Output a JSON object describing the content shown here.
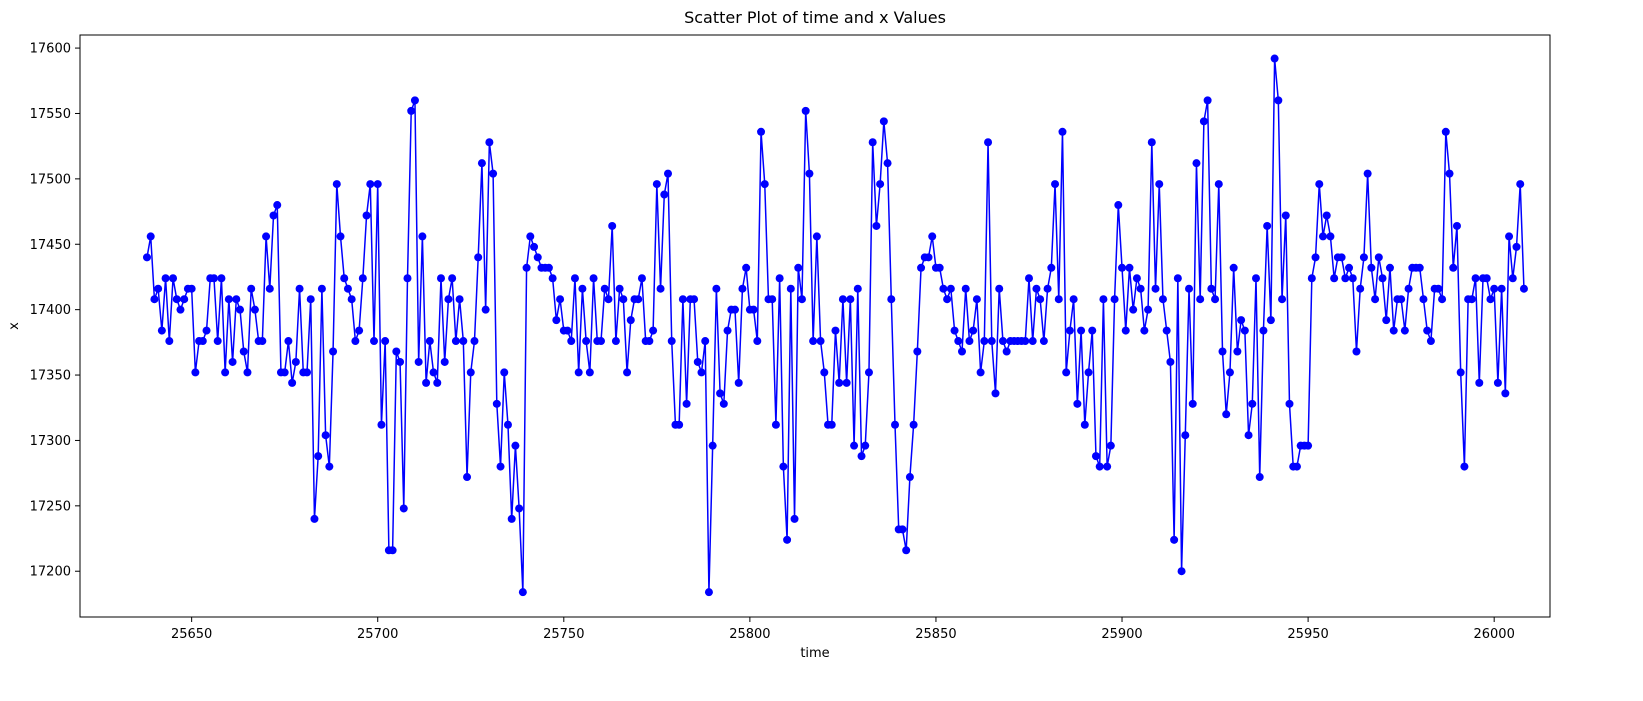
{
  "chart_data": {
    "type": "scatter",
    "title": "Scatter Plot of time and x Values",
    "xlabel": "time",
    "ylabel": "x",
    "xlim": [
      25620,
      26015
    ],
    "ylim": [
      17165,
      17610
    ],
    "xticks": [
      25650,
      25700,
      25750,
      25800,
      25850,
      25900,
      25950,
      26000
    ],
    "yticks": [
      17200,
      17250,
      17300,
      17350,
      17400,
      17450,
      17500,
      17550,
      17600
    ],
    "grid": false,
    "legend": "none",
    "color": "#0000ff",
    "marker": "circle",
    "connected": true,
    "x_start": 25638,
    "x_step": 1,
    "y": [
      17440,
      17456,
      17408,
      17416,
      17384,
      17424,
      17376,
      17424,
      17408,
      17400,
      17408,
      17416,
      17416,
      17352,
      17376,
      17376,
      17384,
      17424,
      17424,
      17376,
      17424,
      17352,
      17408,
      17360,
      17408,
      17400,
      17368,
      17352,
      17416,
      17400,
      17376,
      17376,
      17456,
      17416,
      17472,
      17480,
      17352,
      17352,
      17376,
      17344,
      17360,
      17416,
      17352,
      17352,
      17408,
      17240,
      17288,
      17416,
      17304,
      17280,
      17368,
      17496,
      17456,
      17424,
      17416,
      17408,
      17376,
      17384,
      17424,
      17472,
      17496,
      17376,
      17496,
      17312,
      17376,
      17216,
      17216,
      17368,
      17360,
      17248,
      17424,
      17552,
      17560,
      17360,
      17456,
      17344,
      17376,
      17352,
      17344,
      17424,
      17360,
      17408,
      17424,
      17376,
      17408,
      17376,
      17272,
      17352,
      17376,
      17440,
      17512,
      17400,
      17528,
      17504,
      17328,
      17280,
      17352,
      17312,
      17240,
      17296,
      17248,
      17184,
      17432,
      17456,
      17448,
      17440,
      17432,
      17432,
      17432,
      17424,
      17392,
      17408,
      17384,
      17384,
      17376,
      17424,
      17352,
      17416,
      17376,
      17352,
      17424,
      17376,
      17376,
      17416,
      17408,
      17464,
      17376,
      17416,
      17408,
      17352,
      17392,
      17408,
      17408,
      17424,
      17376,
      17376,
      17384,
      17496,
      17416,
      17488,
      17504,
      17376,
      17312,
      17312,
      17408,
      17328,
      17408,
      17408,
      17360,
      17352,
      17376,
      17184,
      17296,
      17416,
      17336,
      17328,
      17384,
      17400,
      17400,
      17344,
      17416,
      17432,
      17400,
      17400,
      17376,
      17536,
      17496,
      17408,
      17408,
      17312,
      17424,
      17280,
      17224,
      17416,
      17240,
      17432,
      17408,
      17552,
      17504,
      17376,
      17456,
      17376,
      17352,
      17312,
      17312,
      17384,
      17344,
      17408,
      17344,
      17408,
      17296,
      17416,
      17288,
      17296,
      17352,
      17528,
      17464,
      17496,
      17544,
      17512,
      17408,
      17312,
      17232,
      17232,
      17216,
      17272,
      17312,
      17368,
      17432,
      17440,
      17440,
      17456,
      17432,
      17432,
      17416,
      17408,
      17416,
      17384,
      17376,
      17368,
      17416,
      17376,
      17384,
      17408,
      17352,
      17376,
      17528,
      17376,
      17336,
      17416,
      17376,
      17368,
      17376,
      17376,
      17376,
      17376,
      17376,
      17424,
      17376,
      17416,
      17408,
      17376,
      17416,
      17432,
      17496,
      17408,
      17536,
      17352,
      17384,
      17408,
      17328,
      17384,
      17312,
      17352,
      17384,
      17288,
      17280,
      17408,
      17280,
      17296,
      17408,
      17480,
      17432,
      17384,
      17432,
      17400,
      17424,
      17416,
      17384,
      17400,
      17528,
      17416,
      17496,
      17408,
      17384,
      17360,
      17224,
      17424,
      17200,
      17304,
      17416,
      17328,
      17512,
      17408,
      17544,
      17560,
      17416,
      17408,
      17496,
      17368,
      17320,
      17352,
      17432,
      17368,
      17392,
      17384,
      17304,
      17328,
      17424,
      17272,
      17384,
      17464,
      17392,
      17592,
      17560,
      17408,
      17472,
      17328,
      17280,
      17280,
      17296,
      17296,
      17296,
      17424,
      17440,
      17496,
      17456,
      17472,
      17456,
      17424,
      17440,
      17440,
      17424,
      17432,
      17424,
      17368,
      17416,
      17440,
      17504,
      17432,
      17408,
      17440,
      17424,
      17392,
      17432,
      17384,
      17408,
      17408,
      17384,
      17416,
      17432,
      17432,
      17432,
      17408,
      17384,
      17376,
      17416,
      17416,
      17408,
      17536,
      17504,
      17432,
      17464,
      17352,
      17280,
      17408,
      17408,
      17424,
      17344,
      17424,
      17424,
      17408,
      17416,
      17344,
      17416,
      17336,
      17456,
      17424,
      17448,
      17496,
      17416
    ]
  }
}
